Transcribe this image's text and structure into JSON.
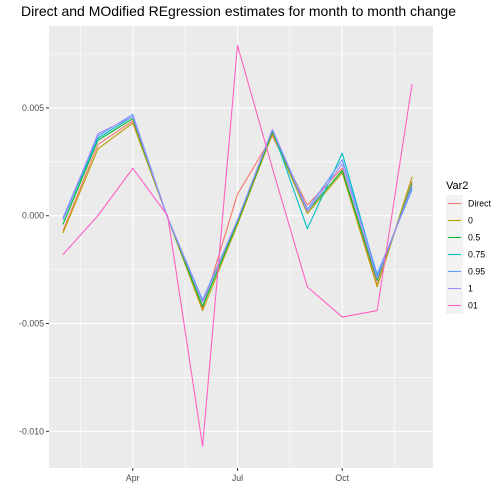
{
  "chart_data": {
    "type": "line",
    "title": "Direct and MOdified REgression estimates for month to month change",
    "xlabel": "",
    "ylabel": "",
    "x_tick_labels": [
      "Apr",
      "Jul",
      "Oct"
    ],
    "x_tick_months": [
      4,
      7,
      10
    ],
    "x": [
      2,
      3,
      4,
      5,
      6,
      7,
      8,
      9,
      10,
      11,
      12
    ],
    "xlim": [
      1.6,
      12.6
    ],
    "y_ticks": [
      0.005,
      0.0,
      -0.005,
      -0.01
    ],
    "y_tick_labels": [
      "0.005",
      "0.000",
      "-0.005",
      "-0.010"
    ],
    "ylim": [
      -0.0117,
      0.0088
    ],
    "grid": true,
    "legend_title": "Var2",
    "legend_position": "right",
    "series": [
      {
        "name": "Direct",
        "color": "#F8766D",
        "values": [
          -0.0007,
          0.0033,
          0.0044,
          -0.0001,
          -0.0043,
          0.001,
          0.0037,
          0.0005,
          0.0022,
          -0.0032,
          0.0016
        ]
      },
      {
        "name": "0",
        "color": "#B79F00",
        "values": [
          -0.0008,
          0.0031,
          0.0043,
          -0.0001,
          -0.0044,
          -0.0004,
          0.0038,
          0.0001,
          0.002,
          -0.0033,
          0.0018
        ]
      },
      {
        "name": "0.5",
        "color": "#00BA38",
        "values": [
          -0.0004,
          0.0035,
          0.0045,
          -0.0001,
          -0.0042,
          -0.0003,
          0.0039,
          0.0002,
          0.0021,
          -0.003,
          0.0015
        ]
      },
      {
        "name": "0.75",
        "color": "#00BFC4",
        "values": [
          -0.0002,
          0.0036,
          0.0046,
          -0.0001,
          -0.004,
          -0.0002,
          0.004,
          -0.0006,
          0.0029,
          -0.0028,
          0.0013
        ]
      },
      {
        "name": "0.95",
        "color": "#619CFF",
        "values": [
          -0.0001,
          0.0037,
          0.0047,
          -0.0001,
          -0.0039,
          -0.0002,
          0.004,
          0.0003,
          0.0026,
          -0.0027,
          0.0012
        ]
      },
      {
        "name": "1",
        "color": "#A58AFF",
        "values": [
          -0.0002,
          0.0038,
          0.0046,
          -0.0001,
          -0.004,
          -0.0002,
          0.004,
          0.0002,
          0.0024,
          -0.0029,
          0.0014
        ]
      },
      {
        "name": "01",
        "color": "#FF61C3",
        "values": [
          -0.0018,
          0.0,
          0.0022,
          0.0,
          -0.0107,
          0.0079,
          0.0022,
          -0.0033,
          -0.0047,
          -0.0044,
          0.0061
        ]
      }
    ]
  }
}
